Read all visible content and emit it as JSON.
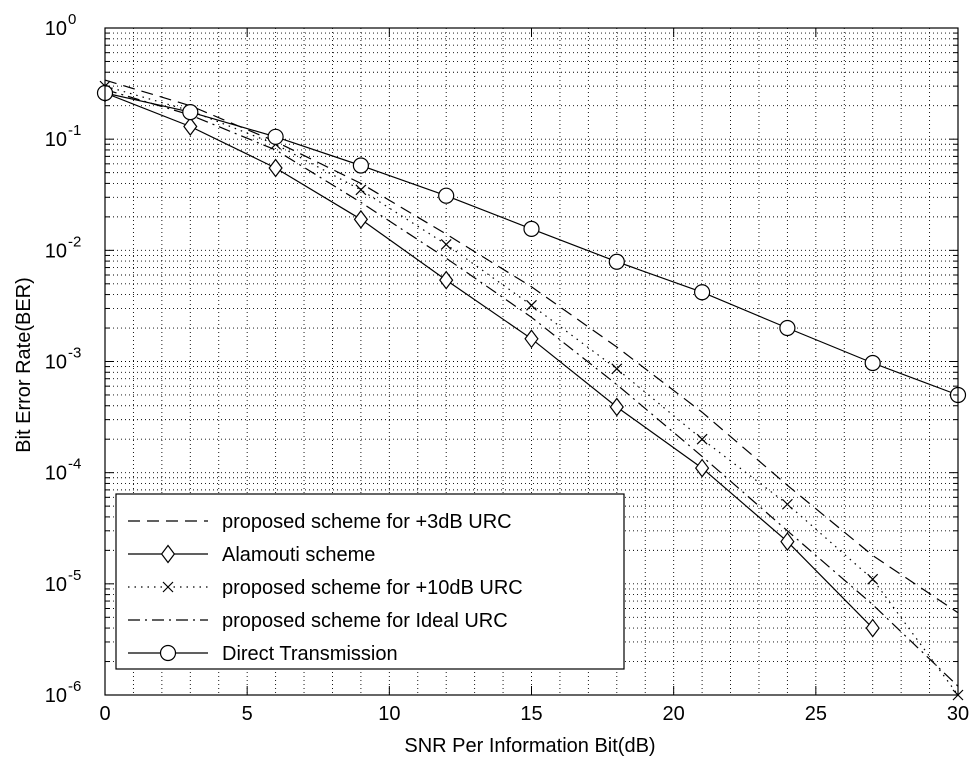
{
  "chart_data": {
    "type": "line",
    "xlabel": "SNR Per Information Bit(dB)",
    "ylabel": "Bit Error Rate(BER)",
    "xlim": [
      0,
      30
    ],
    "ylim": [
      1e-06,
      1
    ],
    "yscale": "log",
    "grid": true,
    "legend_position": "bottom-left",
    "xticks": [
      0,
      5,
      10,
      15,
      20,
      25,
      30
    ],
    "yticks": [
      {
        "value": 1e-06,
        "base": "10",
        "exp": "-6"
      },
      {
        "value": 1e-05,
        "base": "10",
        "exp": "-5"
      },
      {
        "value": 0.0001,
        "base": "10",
        "exp": "-4"
      },
      {
        "value": 0.001,
        "base": "10",
        "exp": "-3"
      },
      {
        "value": 0.01,
        "base": "10",
        "exp": "-2"
      },
      {
        "value": 0.1,
        "base": "10",
        "exp": "-1"
      },
      {
        "value": 1,
        "base": "10",
        "exp": "0"
      }
    ],
    "series": [
      {
        "name": "proposed scheme for +3dB URC",
        "style": "dashed",
        "marker": "none",
        "x": [
          0,
          3,
          6,
          9,
          12,
          15,
          18,
          21,
          24,
          27,
          30
        ],
        "y": [
          0.34,
          0.2,
          0.095,
          0.04,
          0.014,
          0.0047,
          0.00135,
          0.00035,
          7.7e-05,
          1.8e-05,
          5.5e-06
        ]
      },
      {
        "name": "Alamouti scheme",
        "style": "solid",
        "marker": "diamond",
        "x": [
          0,
          3,
          6,
          9,
          12,
          15,
          18,
          21,
          24,
          27
        ],
        "y": [
          0.26,
          0.13,
          0.055,
          0.019,
          0.0054,
          0.0016,
          0.00039,
          0.00011,
          2.4e-05,
          4e-06
        ]
      },
      {
        "name": "proposed scheme for +10dB URC",
        "style": "dotted",
        "marker": "x",
        "x": [
          0,
          3,
          6,
          9,
          12,
          15,
          18,
          21,
          24,
          27,
          30
        ],
        "y": [
          0.3,
          0.18,
          0.09,
          0.035,
          0.0113,
          0.0032,
          0.00086,
          0.0002,
          5.2e-05,
          1.1e-05,
          1e-06
        ]
      },
      {
        "name": "proposed scheme for Ideal URC",
        "style": "dashdot",
        "marker": "none",
        "x": [
          0,
          3,
          6,
          9,
          12,
          15,
          18,
          21,
          24,
          27,
          30
        ],
        "y": [
          0.28,
          0.165,
          0.08,
          0.027,
          0.0085,
          0.0025,
          0.00062,
          0.00014,
          3e-05,
          6.5e-06,
          1.2e-06
        ]
      },
      {
        "name": "Direct Transmission",
        "style": "solid",
        "marker": "circle",
        "x": [
          0,
          3,
          6,
          9,
          12,
          15,
          18,
          21,
          24,
          27,
          30
        ],
        "y": [
          0.26,
          0.175,
          0.105,
          0.058,
          0.031,
          0.0156,
          0.0079,
          0.0042,
          0.002,
          0.00097,
          0.0005
        ]
      }
    ]
  }
}
